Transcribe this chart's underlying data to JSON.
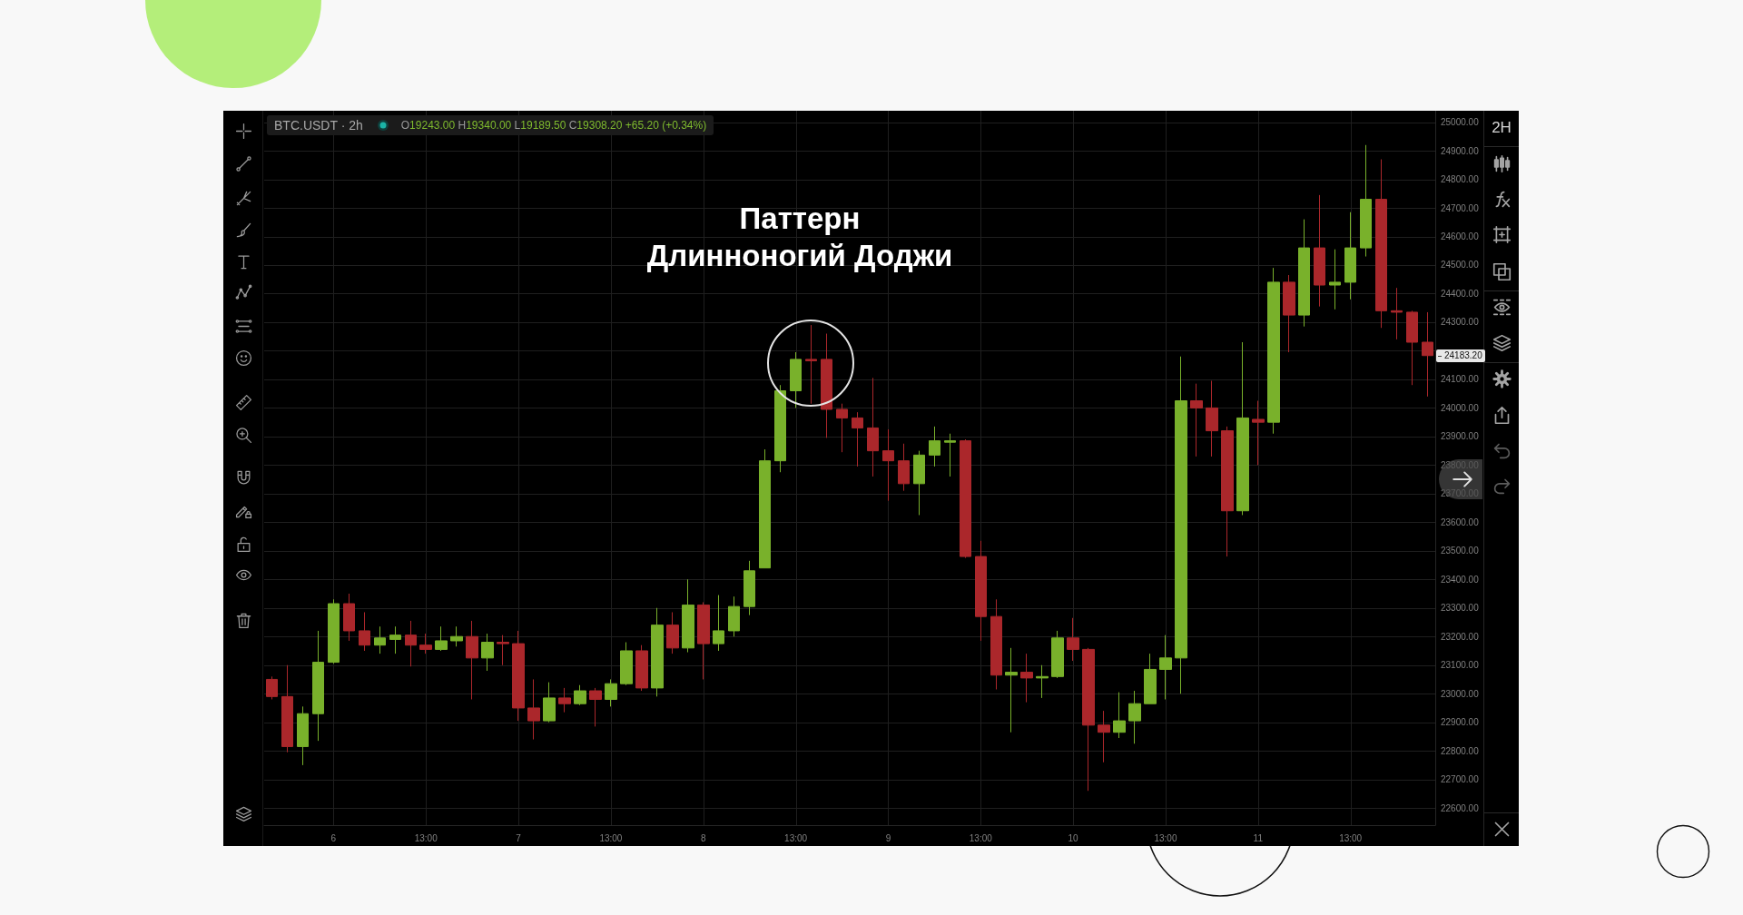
{
  "chart_data": {
    "type": "candlestick",
    "title": "Паттерн Длинноногий Доджи",
    "subtitle": "BTC.USDT · 2h",
    "annotations": [
      "O19243.00 H19340.00 L19189.50 C19308.20 +65.20 (+0.34%)",
      "2H",
      "24183.20"
    ],
    "categories": [
      null,
      null,
      null,
      null,
      "6",
      null,
      null,
      null,
      null,
      null,
      "13:00",
      null,
      null,
      null,
      null,
      null,
      "7",
      null,
      null,
      null,
      null,
      null,
      "13:00",
      null,
      null,
      null,
      null,
      null,
      "8",
      null,
      null,
      null,
      null,
      null,
      "13:00",
      null,
      null,
      null,
      null,
      null,
      "9",
      null,
      null,
      null,
      null,
      null,
      "13:00",
      null,
      null,
      null,
      null,
      null,
      "10",
      null,
      null,
      null,
      null,
      null,
      "13:00",
      null,
      null,
      null,
      null,
      null,
      "11",
      null,
      null,
      null,
      null,
      null,
      "13:00",
      null,
      null,
      null,
      null,
      null
    ],
    "ohlc": [
      [
        23050,
        23060,
        22980,
        22990
      ],
      [
        22990,
        23100,
        22795,
        22815
      ],
      [
        22815,
        22955,
        22750,
        22930
      ],
      [
        22930,
        23220,
        22835,
        23110
      ],
      [
        23110,
        23330,
        23105,
        23315
      ],
      [
        23315,
        23350,
        23185,
        23220
      ],
      [
        23220,
        23285,
        23150,
        23170
      ],
      [
        23170,
        23235,
        23140,
        23195
      ],
      [
        23190,
        23235,
        23140,
        23205
      ],
      [
        23205,
        23255,
        23095,
        23170
      ],
      [
        23170,
        23210,
        23140,
        23155
      ],
      [
        23155,
        23235,
        23150,
        23185
      ],
      [
        23185,
        23235,
        23165,
        23200
      ],
      [
        23200,
        23255,
        22980,
        23125
      ],
      [
        23125,
        23210,
        23080,
        23180
      ],
      [
        23180,
        23205,
        23100,
        23175
      ],
      [
        23175,
        23220,
        22905,
        22950
      ],
      [
        22950,
        23050,
        22840,
        22905
      ],
      [
        22905,
        23040,
        22900,
        22985
      ],
      [
        22985,
        23020,
        22935,
        22965
      ],
      [
        22965,
        23030,
        22960,
        23010
      ],
      [
        23010,
        23020,
        22885,
        22980
      ],
      [
        22980,
        23050,
        22955,
        23035
      ],
      [
        23035,
        23180,
        23030,
        23150
      ],
      [
        23150,
        23170,
        23010,
        23020
      ],
      [
        23020,
        23300,
        22990,
        23240
      ],
      [
        23240,
        23285,
        23140,
        23160
      ],
      [
        23160,
        23400,
        23145,
        23310
      ],
      [
        23310,
        23320,
        23050,
        23175
      ],
      [
        23175,
        23345,
        23150,
        23220
      ],
      [
        23220,
        23340,
        23200,
        23305
      ],
      [
        23305,
        23465,
        23275,
        23430
      ],
      [
        23440,
        23855,
        23440,
        23815
      ],
      [
        23815,
        24080,
        23775,
        24060
      ],
      [
        24060,
        24195,
        24000,
        24170
      ],
      [
        24170,
        24290,
        24015,
        24165
      ],
      [
        24170,
        24260,
        23895,
        23995
      ],
      [
        23995,
        24015,
        23845,
        23965
      ],
      [
        23965,
        23985,
        23795,
        23930
      ],
      [
        23930,
        24105,
        23760,
        23850
      ],
      [
        23850,
        23925,
        23675,
        23815
      ],
      [
        23815,
        23875,
        23710,
        23735
      ],
      [
        23735,
        23850,
        23625,
        23835
      ],
      [
        23835,
        23935,
        23795,
        23885
      ],
      [
        23880,
        23910,
        23760,
        23885
      ],
      [
        23885,
        23890,
        23475,
        23480
      ],
      [
        23480,
        23535,
        23185,
        23270
      ],
      [
        23270,
        23330,
        23015,
        23065
      ],
      [
        23065,
        23160,
        22865,
        23075
      ],
      [
        23075,
        23140,
        22970,
        23055
      ],
      [
        23055,
        23100,
        22985,
        23060
      ],
      [
        23060,
        23220,
        23055,
        23195
      ],
      [
        23195,
        23265,
        23115,
        23155
      ],
      [
        23155,
        23160,
        22660,
        22890
      ],
      [
        22890,
        22940,
        22760,
        22865
      ],
      [
        22865,
        23005,
        22845,
        22905
      ],
      [
        22905,
        23010,
        22825,
        22965
      ],
      [
        22965,
        23140,
        22965,
        23085
      ],
      [
        23085,
        23205,
        22980,
        23125
      ],
      [
        23125,
        24180,
        23000,
        24025
      ],
      [
        24025,
        24085,
        23830,
        24000
      ],
      [
        24000,
        24095,
        23830,
        23920
      ],
      [
        23920,
        23935,
        23480,
        23640
      ],
      [
        23640,
        24230,
        23625,
        23965
      ],
      [
        23960,
        24025,
        23800,
        23950
      ],
      [
        23950,
        24490,
        23910,
        24440
      ],
      [
        24440,
        24465,
        24195,
        24325
      ],
      [
        24325,
        24660,
        24285,
        24560
      ],
      [
        24560,
        24745,
        24355,
        24430
      ],
      [
        24430,
        24555,
        24345,
        24440
      ],
      [
        24440,
        24685,
        24380,
        24560
      ],
      [
        24560,
        24920,
        24530,
        24730
      ],
      [
        24730,
        24870,
        24280,
        24340
      ],
      [
        24340,
        24420,
        24240,
        24335
      ],
      [
        24335,
        24340,
        24080,
        24230
      ],
      [
        24230,
        24335,
        24040,
        24183.2
      ]
    ],
    "colors": [
      "#ab272b",
      "#ab272b",
      "#79b12b",
      "#79b12b",
      "#79b12b",
      "#ab272b",
      "#ab272b",
      "#79b12b",
      "#79b12b",
      "#ab272b",
      "#ab272b",
      "#79b12b",
      "#79b12b",
      "#ab272b",
      "#79b12b",
      "#ab272b",
      "#ab272b",
      "#ab272b",
      "#79b12b",
      "#ab272b",
      "#79b12b",
      "#ab272b",
      "#79b12b",
      "#79b12b",
      "#ab272b",
      "#79b12b",
      "#ab272b",
      "#79b12b",
      "#ab272b",
      "#79b12b",
      "#79b12b",
      "#79b12b",
      "#79b12b",
      "#79b12b",
      "#79b12b",
      "#ab272b",
      "#ab272b",
      "#ab272b",
      "#ab272b",
      "#ab272b",
      "#ab272b",
      "#ab272b",
      "#79b12b",
      "#79b12b",
      "#79b12b",
      "#ab272b",
      "#ab272b",
      "#ab272b",
      "#79b12b",
      "#ab272b",
      "#79b12b",
      "#79b12b",
      "#ab272b",
      "#ab272b",
      "#ab272b",
      "#79b12b",
      "#79b12b",
      "#79b12b",
      "#79b12b",
      "#79b12b",
      "#ab272b",
      "#ab272b",
      "#ab272b",
      "#79b12b",
      "#ab272b",
      "#79b12b",
      "#ab272b",
      "#79b12b",
      "#ab272b",
      "#79b12b",
      "#79b12b",
      "#79b12b",
      "#ab272b",
      "#ab272b",
      "#ab272b",
      "#ab272b"
    ],
    "ylim": [
      22540,
      25040
    ],
    "yticks": [
      {
        "value": 22600,
        "label": "22600.00"
      },
      {
        "value": 22700,
        "label": "22700.00"
      },
      {
        "value": 22800,
        "label": "22800.00"
      },
      {
        "value": 22900,
        "label": "22900.00"
      },
      {
        "value": 23000,
        "label": "23000.00"
      },
      {
        "value": 23100,
        "label": "23100.00"
      },
      {
        "value": 23200,
        "label": "23200.00"
      },
      {
        "value": 23300,
        "label": "23300.00"
      },
      {
        "value": 23400,
        "label": "23400.00"
      },
      {
        "value": 23500,
        "label": "23500.00"
      },
      {
        "value": 23600,
        "label": "23600.00"
      },
      {
        "value": 23700,
        "label": "23700.00"
      },
      {
        "value": 23800,
        "label": "23800.00"
      },
      {
        "value": 23900,
        "label": "23900.00"
      },
      {
        "value": 24000,
        "label": "24000.00"
      },
      {
        "value": 24100,
        "label": "24100.00"
      },
      {
        "value": 24200,
        "label": null
      },
      {
        "value": 24300,
        "label": "24300.00"
      },
      {
        "value": 24400,
        "label": "24400.00"
      },
      {
        "value": 24500,
        "label": "24500.00"
      },
      {
        "value": 24600,
        "label": "24600.00"
      },
      {
        "value": 24700,
        "label": "24700.00"
      },
      {
        "value": 24800,
        "label": "24800.00"
      },
      {
        "value": 24900,
        "label": "24900.00"
      },
      {
        "value": 25000,
        "label": "25000.00"
      }
    ],
    "grid": true
  }
}
